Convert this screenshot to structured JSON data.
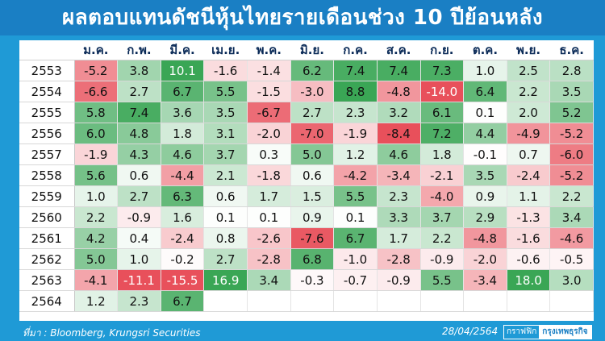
{
  "title": "ผลตอบแทนดัชนีหุ้นไทยรายเดือนช่วง 10 ปีย้อนหลัง",
  "footer": {
    "source": "ที่มา : Bloomberg, Krungsri Securities",
    "date": "28/04/2564",
    "logo_small": "กราฟฟิก",
    "logo_main": "กรุงเทพธุรกิจ"
  },
  "colors": {
    "header_bg": "#1a7fc4",
    "page_bg": "#1f9ad6",
    "positive_strong": "#3aa655",
    "negative_strong": "#e8505b"
  },
  "chart_data": {
    "type": "heatmap",
    "title": "ผลตอบแทนดัชนีหุ้นไทยรายเดือนช่วง 10 ปีย้อนหลัง",
    "columns": [
      "ม.ค.",
      "ก.พ.",
      "มี.ค.",
      "เม.ย.",
      "พ.ค.",
      "มิ.ย.",
      "ก.ค.",
      "ส.ค.",
      "ก.ย.",
      "ต.ค.",
      "พ.ย.",
      "ธ.ค."
    ],
    "rows": [
      "2553",
      "2554",
      "2555",
      "2556",
      "2557",
      "2558",
      "2559",
      "2560",
      "2561",
      "2562",
      "2563",
      "2564"
    ],
    "values": [
      [
        -5.2,
        3.8,
        10.1,
        -1.6,
        -1.4,
        6.2,
        7.4,
        7.4,
        7.3,
        1.0,
        2.5,
        2.8
      ],
      [
        -6.6,
        2.7,
        6.7,
        5.5,
        -1.5,
        -3.0,
        8.8,
        -4.8,
        -14.0,
        6.4,
        2.2,
        3.5
      ],
      [
        5.8,
        7.4,
        3.6,
        3.5,
        -6.7,
        2.7,
        2.3,
        3.2,
        6.1,
        0.1,
        2.0,
        5.2
      ],
      [
        6.0,
        4.8,
        1.8,
        3.1,
        -2.0,
        -7.0,
        -1.9,
        -8.4,
        7.2,
        4.4,
        -4.9,
        -5.2
      ],
      [
        -1.9,
        4.3,
        4.6,
        3.7,
        0.3,
        5.0,
        1.2,
        4.6,
        1.8,
        -0.1,
        0.7,
        -6.0
      ],
      [
        5.6,
        0.6,
        -4.4,
        2.1,
        -1.8,
        0.6,
        -4.2,
        -3.4,
        -2.1,
        3.5,
        -2.4,
        -5.2
      ],
      [
        1.0,
        2.7,
        6.3,
        0.6,
        1.7,
        1.5,
        5.5,
        2.3,
        -4.0,
        0.9,
        1.1,
        2.2
      ],
      [
        2.2,
        -0.9,
        1.6,
        0.1,
        0.1,
        0.9,
        0.1,
        3.3,
        3.7,
        2.9,
        -1.3,
        3.4
      ],
      [
        4.2,
        0.4,
        -2.4,
        0.8,
        -2.6,
        -7.6,
        6.7,
        1.7,
        2.2,
        -4.8,
        -1.6,
        -4.6
      ],
      [
        5.0,
        1.0,
        -0.2,
        2.7,
        -2.8,
        6.8,
        -1.0,
        -2.8,
        -0.9,
        -2.0,
        -0.6,
        -0.5
      ],
      [
        -4.1,
        -11.1,
        -15.5,
        16.9,
        3.4,
        -0.3,
        -0.7,
        -0.9,
        5.5,
        -3.4,
        18.0,
        3.0
      ],
      [
        1.2,
        2.3,
        6.7,
        null,
        null,
        null,
        null,
        null,
        null,
        null,
        null,
        null
      ]
    ],
    "unit": "%"
  }
}
